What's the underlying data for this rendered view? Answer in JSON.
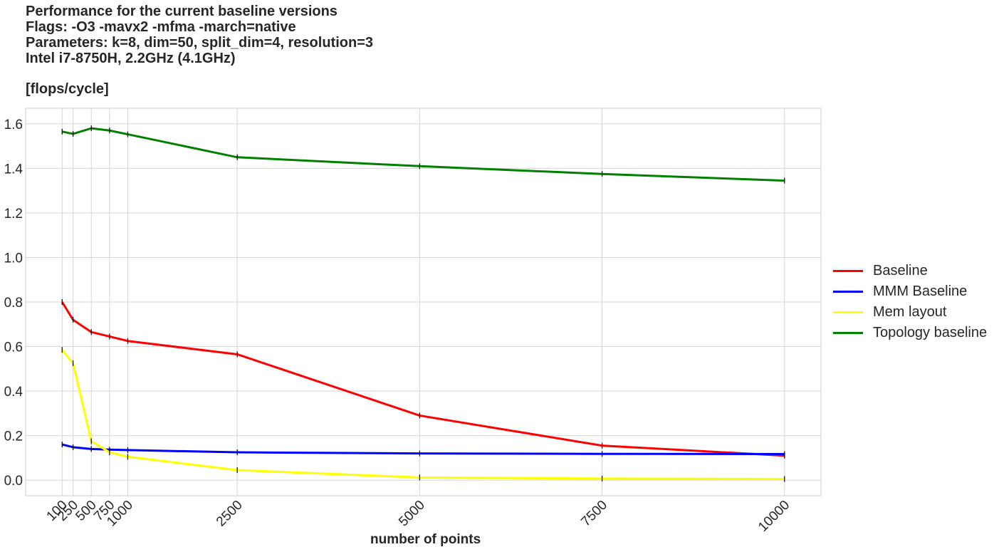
{
  "chart_data": {
    "type": "line",
    "title_lines": [
      "Performance for the current baseline versions",
      "Flags: -O3 -mavx2 -mfma -march=native",
      "Parameters: k=8, dim=50, split_dim=4, resolution=3",
      "Intel i7-8750H, 2.2GHz (4.1GHz)"
    ],
    "ylabel": "[flops/cycle]",
    "xlabel": "number of points",
    "x": [
      100,
      250,
      500,
      750,
      1000,
      2500,
      5000,
      7500,
      10000
    ],
    "xticks": [
      "100",
      "250",
      "500",
      "750",
      "1000",
      "2500",
      "5000",
      "7500",
      "10000"
    ],
    "yticks": [
      "0.0",
      "0.2",
      "0.4",
      "0.6",
      "0.8",
      "1.0",
      "1.2",
      "1.4",
      "1.6"
    ],
    "ylim": [
      -0.07,
      1.67
    ],
    "xlim": [
      -400,
      10500
    ],
    "grid": true,
    "legend_position": "right",
    "series": [
      {
        "name": "Baseline",
        "color": "#ff0000",
        "values": [
          0.8,
          0.72,
          0.665,
          0.645,
          0.625,
          0.565,
          0.29,
          0.155,
          0.11
        ]
      },
      {
        "name": "MMM Baseline",
        "color": "#0000ff",
        "values": [
          0.16,
          0.148,
          0.14,
          0.137,
          0.135,
          0.125,
          0.12,
          0.118,
          0.117
        ]
      },
      {
        "name": "Mem layout",
        "color": "#ffff00",
        "values": [
          0.585,
          0.525,
          0.175,
          0.125,
          0.105,
          0.045,
          0.012,
          0.007,
          0.005
        ]
      },
      {
        "name": "Topology baseline",
        "color": "#008000",
        "values": [
          1.565,
          1.555,
          1.58,
          1.57,
          1.553,
          1.45,
          1.41,
          1.375,
          1.345
        ]
      }
    ]
  }
}
